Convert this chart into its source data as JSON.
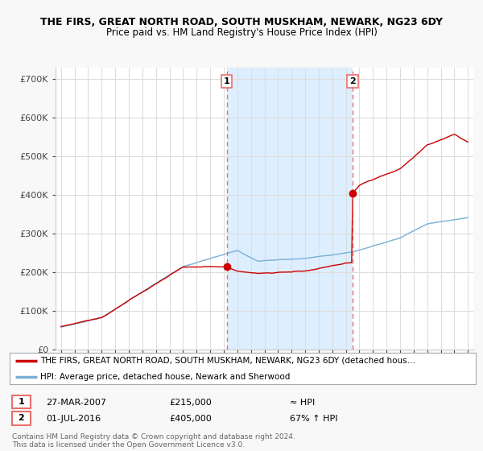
{
  "title_line1": "THE FIRS, GREAT NORTH ROAD, SOUTH MUSKHAM, NEWARK, NG23 6DY",
  "title_line2": "Price paid vs. HM Land Registry's House Price Index (HPI)",
  "yticks": [
    0,
    100000,
    200000,
    300000,
    400000,
    500000,
    600000,
    700000
  ],
  "ytick_labels": [
    "£0",
    "£100K",
    "£200K",
    "£300K",
    "£400K",
    "£500K",
    "£600K",
    "£700K"
  ],
  "xlim_start": 1994.6,
  "xlim_end": 2025.4,
  "ylim": [
    0,
    730000
  ],
  "plot_bg_color": "#ffffff",
  "shade_color": "#ddeeff",
  "grid_color": "#dddddd",
  "sale1_date": 2007.23,
  "sale1_price": 215000,
  "sale2_date": 2016.5,
  "sale2_price": 405000,
  "legend_line1": "THE FIRS, GREAT NORTH ROAD, SOUTH MUSKHAM, NEWARK, NG23 6DY (detached hous…",
  "legend_line2": "HPI: Average price, detached house, Newark and Sherwood",
  "table_row1": [
    "1",
    "27-MAR-2007",
    "£215,000",
    "≈ HPI"
  ],
  "table_row2": [
    "2",
    "01-JUL-2016",
    "£405,000",
    "67% ↑ HPI"
  ],
  "footer": "Contains HM Land Registry data © Crown copyright and database right 2024.\nThis data is licensed under the Open Government Licence v3.0.",
  "red_color": "#cc0000",
  "blue_color": "#7ab0d4",
  "dashed_color": "#e87070"
}
